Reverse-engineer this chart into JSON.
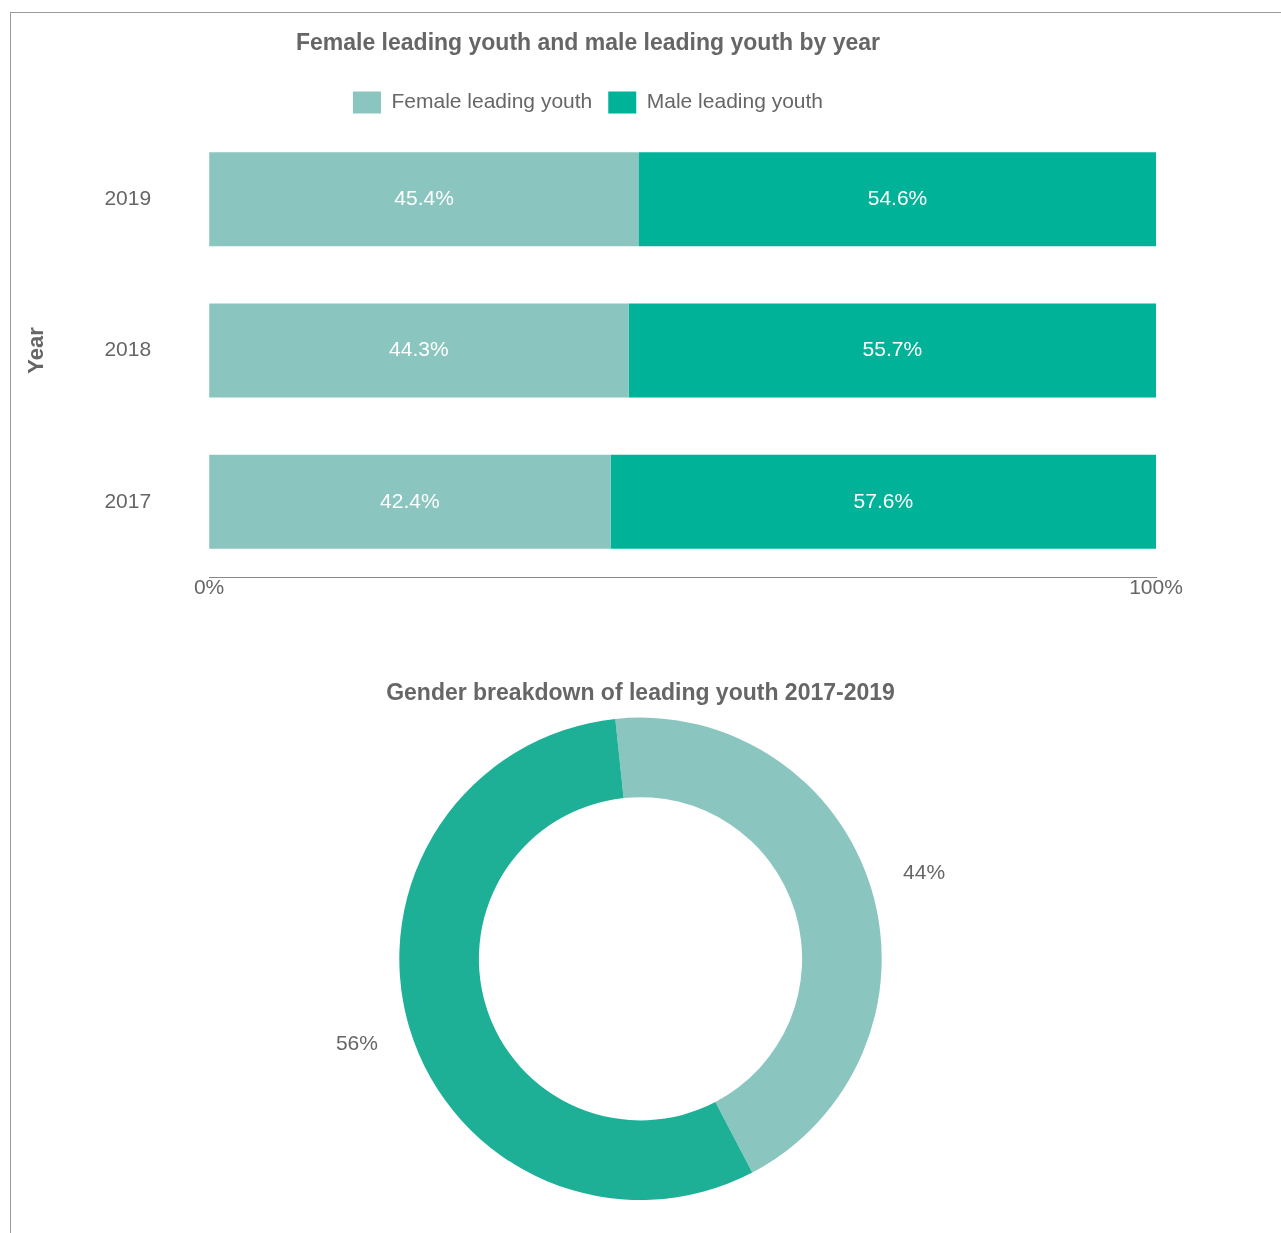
{
  "chart_data": [
    {
      "type": "bar",
      "orientation": "horizontal",
      "stacked": true,
      "title": "Female leading youth and male leading youth by year",
      "ylabel": "Year",
      "categories": [
        "2019",
        "2018",
        "2017"
      ],
      "series": [
        {
          "name": "Female leading youth",
          "color": "#8ac6bf",
          "values": [
            45.4,
            44.3,
            42.4
          ],
          "value_labels": [
            "45.4%",
            "44.3%",
            "42.4%"
          ]
        },
        {
          "name": "Male leading youth",
          "color": "#00b398",
          "values": [
            54.6,
            55.7,
            57.6
          ],
          "value_labels": [
            "54.6%",
            "55.7%",
            "57.6%"
          ]
        }
      ],
      "xlim": [
        0,
        100
      ],
      "xticks": [
        {
          "value": 0,
          "label": "0%"
        },
        {
          "value": 100,
          "label": "100%"
        }
      ],
      "grid": false,
      "legend": "top"
    },
    {
      "type": "donut",
      "title": "Gender breakdown of leading youth 2017-2019",
      "categories": [
        null,
        null
      ],
      "values": [
        44,
        56
      ],
      "colors": [
        "#8ac6bf",
        "#1db096"
      ],
      "value_labels": [
        "44%",
        "56%"
      ],
      "legend": false
    }
  ]
}
